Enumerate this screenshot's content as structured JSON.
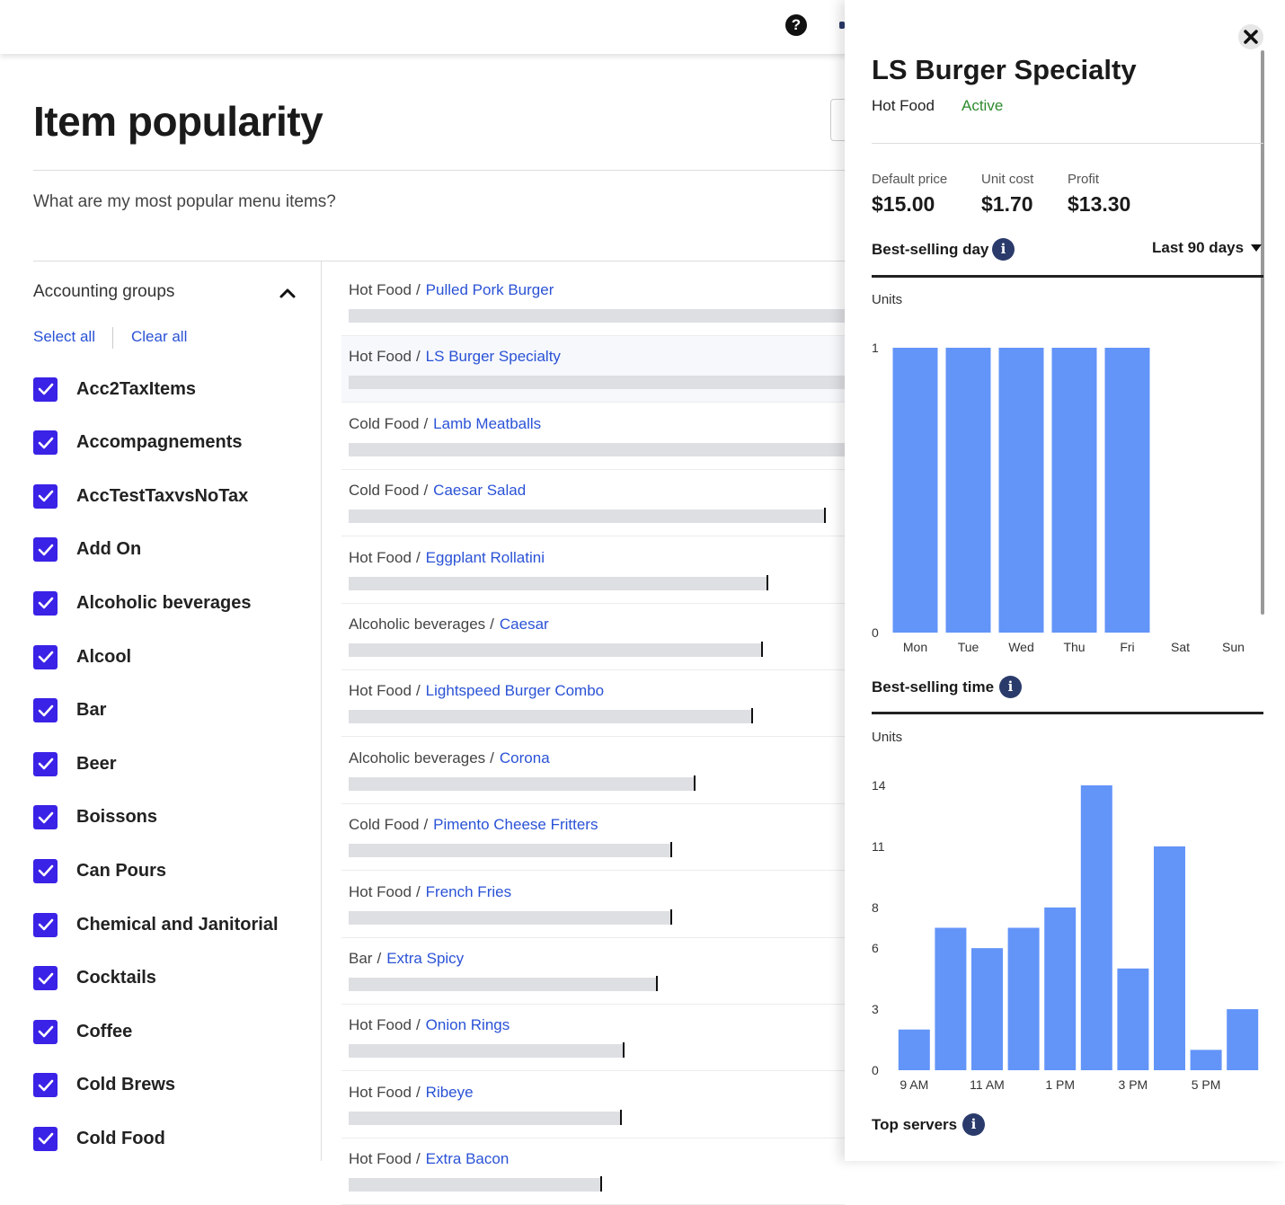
{
  "topbar": {
    "help_icon": "?"
  },
  "page": {
    "title": "Item popularity",
    "question": "What are my most popular menu items?"
  },
  "sidebar": {
    "title": "Accounting groups",
    "select_all": "Select all",
    "clear_all": "Clear all",
    "groups": [
      {
        "label": "Acc2TaxItems",
        "checked": true
      },
      {
        "label": "Accompagnements",
        "checked": true
      },
      {
        "label": "AccTestTaxvsNoTax",
        "checked": true
      },
      {
        "label": "Add On",
        "checked": true
      },
      {
        "label": "Alcoholic beverages",
        "checked": true
      },
      {
        "label": "Alcool",
        "checked": true
      },
      {
        "label": "Bar",
        "checked": true
      },
      {
        "label": "Beer",
        "checked": true
      },
      {
        "label": "Boissons",
        "checked": true
      },
      {
        "label": "Can Pours",
        "checked": true
      },
      {
        "label": "Chemical and Janitorial",
        "checked": true
      },
      {
        "label": "Cocktails",
        "checked": true
      },
      {
        "label": "Coffee",
        "checked": true
      },
      {
        "label": "Cold Brews",
        "checked": true
      },
      {
        "label": "Cold Food",
        "checked": true
      }
    ]
  },
  "items": [
    {
      "category": "Hot Food",
      "name": "Pulled Pork Burger",
      "popularity": 1.0,
      "highlight": false
    },
    {
      "category": "Hot Food",
      "name": "LS Burger Specialty",
      "popularity": 1.0,
      "highlight": true
    },
    {
      "category": "Cold Food",
      "name": "Lamb Meatballs",
      "popularity": 1.0,
      "highlight": false
    },
    {
      "category": "Cold Food",
      "name": "Caesar Salad",
      "popularity": 0.945,
      "highlight": false
    },
    {
      "category": "Hot Food",
      "name": "Eggplant Rollatini",
      "popularity": 0.83,
      "highlight": false
    },
    {
      "category": "Alcoholic beverages",
      "name": "Caesar",
      "popularity": 0.82,
      "highlight": false
    },
    {
      "category": "Hot Food",
      "name": "Lightspeed Burger Combo",
      "popularity": 0.8,
      "highlight": false
    },
    {
      "category": "Alcoholic beverages",
      "name": "Corona",
      "popularity": 0.685,
      "highlight": false
    },
    {
      "category": "Cold Food",
      "name": "Pimento Cheese Fritters",
      "popularity": 0.64,
      "highlight": false
    },
    {
      "category": "Hot Food",
      "name": "French Fries",
      "popularity": 0.64,
      "highlight": false
    },
    {
      "category": "Bar",
      "name": "Extra Spicy",
      "popularity": 0.61,
      "highlight": false
    },
    {
      "category": "Hot Food",
      "name": "Onion Rings",
      "popularity": 0.545,
      "highlight": false
    },
    {
      "category": "Hot Food",
      "name": "Ribeye",
      "popularity": 0.54,
      "highlight": false
    },
    {
      "category": "Hot Food",
      "name": "Extra Bacon",
      "popularity": 0.5,
      "highlight": false
    }
  ],
  "panel": {
    "title": "LS Burger Specialty",
    "category": "Hot Food",
    "status": "Active",
    "status_color": "#2e8b2e",
    "stats": [
      {
        "label": "Default price",
        "value": "$15.00"
      },
      {
        "label": "Unit cost",
        "value": "$1.70"
      },
      {
        "label": "Profit",
        "value": "$13.30"
      }
    ],
    "best_day_title": "Best-selling day",
    "best_time_title": "Best-selling time",
    "top_servers_title": "Top servers",
    "range": "Last 90 days",
    "units_label": "Units",
    "info_icon": "i",
    "close_icon": "close-icon"
  },
  "chart_data": [
    {
      "type": "bar",
      "title": "Best-selling day",
      "ylabel": "Units",
      "categories": [
        "Mon",
        "Tue",
        "Wed",
        "Thu",
        "Fri",
        "Sat",
        "Sun"
      ],
      "values": [
        1,
        1,
        1,
        1,
        1,
        0,
        0
      ],
      "yticks": [
        0,
        1
      ],
      "ylim": [
        0,
        1
      ],
      "color": "#6394f8"
    },
    {
      "type": "bar",
      "title": "Best-selling time",
      "ylabel": "Units",
      "categories": [
        "9 AM",
        "10 AM",
        "11 AM",
        "12 PM",
        "1 PM",
        "2 PM",
        "3 PM",
        "4 PM",
        "5 PM",
        "6 PM"
      ],
      "tick_labels": [
        "9 AM",
        "",
        "11 AM",
        "",
        "1 PM",
        "",
        "3 PM",
        "",
        "5 PM",
        ""
      ],
      "values": [
        2,
        7,
        6,
        7,
        8,
        14,
        5,
        11,
        1,
        3
      ],
      "yticks": [
        0,
        3,
        6,
        8,
        11,
        14
      ],
      "ylim": [
        0,
        14
      ],
      "color": "#6394f8"
    }
  ]
}
